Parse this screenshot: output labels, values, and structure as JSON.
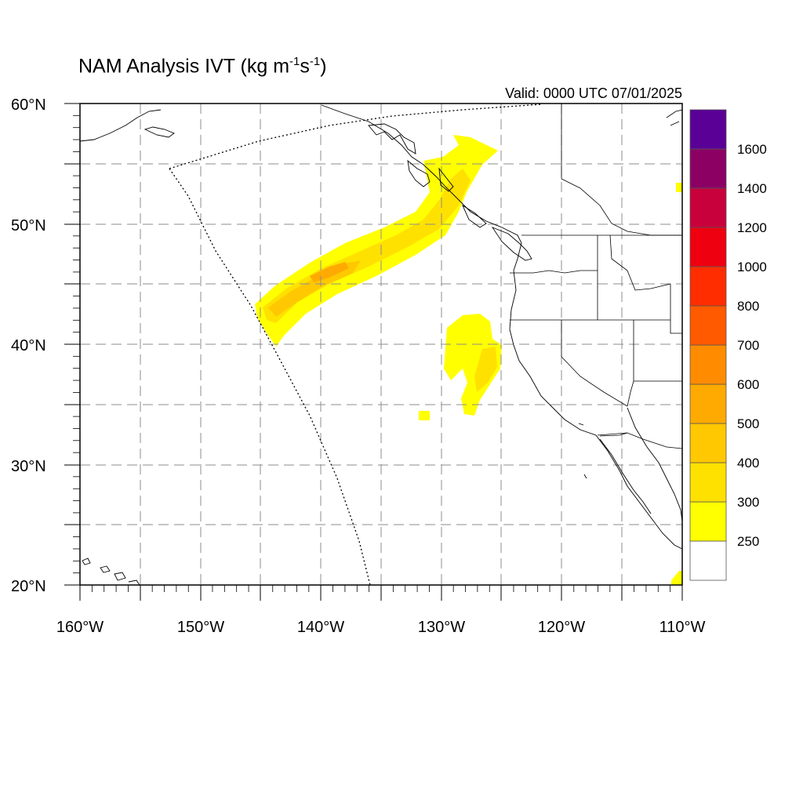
{
  "title": {
    "prefix": "NAM Analysis IVT (kg m",
    "sup1": "-1",
    "mid": "s",
    "sup2": "-1",
    "suffix": ")"
  },
  "valid_text": "Valid: 0000 UTC 07/01/2025",
  "map": {
    "lon_range": [
      -160,
      -110
    ],
    "lat_range": [
      20,
      60
    ],
    "grid_lines": true,
    "lat_labels": [
      "20°N",
      "30°N",
      "40°N",
      "50°N",
      "60°N"
    ],
    "lat_label_values": [
      20,
      30,
      40,
      50,
      60
    ],
    "lon_labels": [
      "160°W",
      "150°W",
      "140°W",
      "130°W",
      "120°W",
      "110°W"
    ],
    "lon_label_values": [
      -160,
      -150,
      -140,
      -130,
      -120,
      -110
    ]
  },
  "colorbar": {
    "labels": [
      "250",
      "300",
      "400",
      "500",
      "600",
      "700",
      "800",
      "1000",
      "1200",
      "1400",
      "1600"
    ],
    "colors": [
      "#ffffff",
      "#ffff00",
      "#ffe100",
      "#ffc800",
      "#ffaa00",
      "#ff8c00",
      "#ff5a00",
      "#ff2d00",
      "#ee0010",
      "#c8003c",
      "#8c0064",
      "#5a0096"
    ]
  }
}
